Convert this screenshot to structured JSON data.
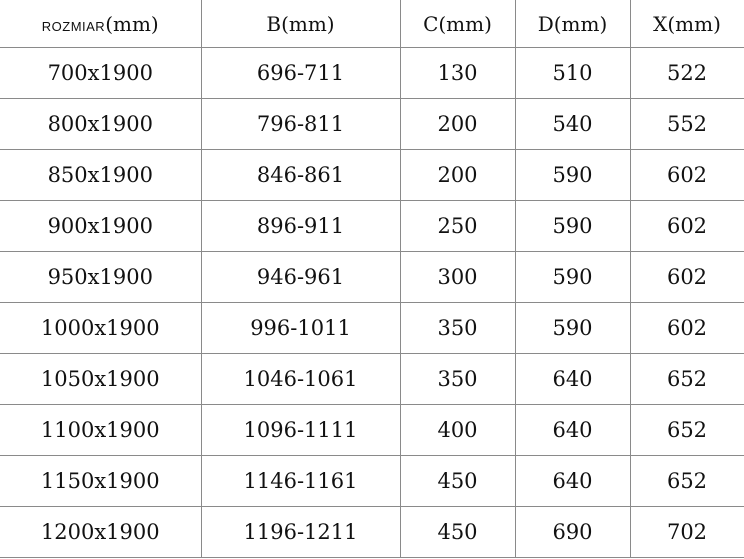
{
  "headers": [
    {
      "label": "ROZMIAR",
      "unit": "(mm)"
    },
    {
      "label": "B",
      "unit": "(mm)"
    },
    {
      "label": "C",
      "unit": "(mm)"
    },
    {
      "label": "D",
      "unit": "(mm)"
    },
    {
      "label": "X",
      "unit": "(mm)"
    }
  ],
  "rows": [
    [
      "700x1900",
      "696-711",
      "130",
      "510",
      "522"
    ],
    [
      "800x1900",
      "796-811",
      "200",
      "540",
      "552"
    ],
    [
      "850x1900",
      "846-861",
      "200",
      "590",
      "602"
    ],
    [
      "900x1900",
      "896-911",
      "250",
      "590",
      "602"
    ],
    [
      "950x1900",
      "946-961",
      "300",
      "590",
      "602"
    ],
    [
      "1000x1900",
      "996-1011",
      "350",
      "590",
      "602"
    ],
    [
      "1050x1900",
      "1046-1061",
      "350",
      "640",
      "652"
    ],
    [
      "1100x1900",
      "1096-1111",
      "400",
      "640",
      "652"
    ],
    [
      "1150x1900",
      "1146-1161",
      "450",
      "640",
      "652"
    ],
    [
      "1200x1900",
      "1196-1211",
      "450",
      "690",
      "702"
    ]
  ]
}
